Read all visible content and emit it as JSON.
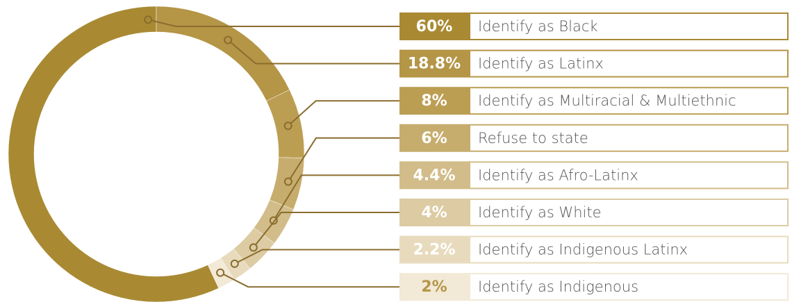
{
  "chart_data": {
    "type": "pie",
    "donut": true,
    "categories": [
      "Identify as Black",
      "Identify as Latinx",
      "Identify as Multiracial & Multiethnic",
      "Refuse to state",
      "Identify as Afro-Latinx",
      "Identify as White",
      "Identify as Indigenous Latinx",
      "Identify as Indigenous"
    ],
    "values": [
      60,
      18.8,
      8,
      6,
      4.4,
      4,
      2.2,
      2
    ],
    "value_labels": [
      "60%",
      "18.8%",
      "8%",
      "6%",
      "4.4%",
      "4%",
      "2.2%",
      "2%"
    ],
    "colors": [
      "#a98a33",
      "#b59546",
      "#bc9e53",
      "#c7ad6d",
      "#d2bc89",
      "#dccba3",
      "#e8dbbd",
      "#f2e9d6"
    ]
  }
}
